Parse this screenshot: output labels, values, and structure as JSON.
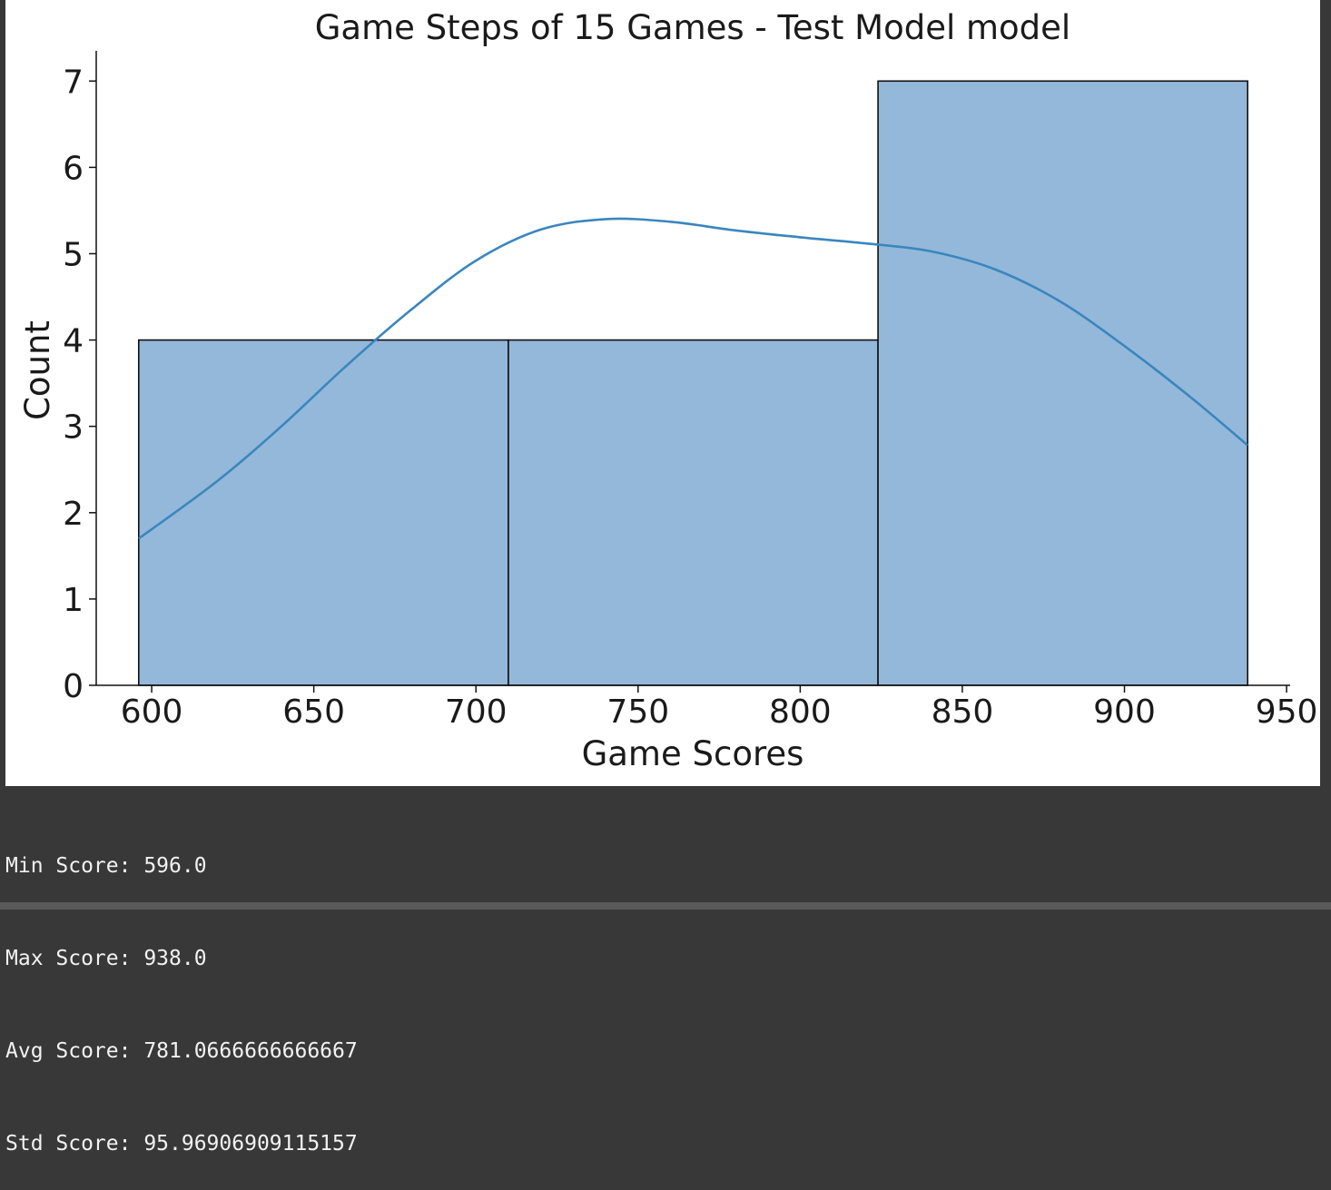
{
  "chart_data": {
    "type": "bar",
    "title": "Game Steps of 15 Games - Test Model model",
    "xlabel": "Game Scores",
    "ylabel": "Count",
    "bins": [
      {
        "start": 596.0,
        "end": 710.0,
        "count": 4
      },
      {
        "start": 710.0,
        "end": 824.0,
        "count": 4
      },
      {
        "start": 824.0,
        "end": 938.0,
        "count": 7
      }
    ],
    "xlim": [
      582.9,
      951.1
    ],
    "ylim": [
      0,
      7.35
    ],
    "xticks": [
      600,
      650,
      700,
      750,
      800,
      850,
      900,
      950
    ],
    "yticks": [
      0,
      1,
      2,
      3,
      4,
      5,
      6,
      7
    ],
    "kde": {
      "x": [
        596,
        620,
        640,
        660,
        680,
        700,
        720,
        740,
        760,
        780,
        800,
        820,
        840,
        860,
        880,
        900,
        920,
        938
      ],
      "y": [
        1.7,
        2.36,
        3.0,
        3.7,
        4.35,
        4.92,
        5.28,
        5.4,
        5.37,
        5.27,
        5.19,
        5.12,
        5.03,
        4.82,
        4.45,
        3.93,
        3.35,
        2.78
      ]
    },
    "colors": {
      "bar_fill": "#94b8d9",
      "bar_edge": "#111111",
      "kde_line": "#3a86bf"
    },
    "grid": false,
    "legend": "none"
  },
  "output": {
    "lines": [
      "Min Score: 596.0",
      "Max Score: 938.0",
      "Avg Score: 781.0666666666667",
      "Std Score: 95.96906909115157"
    ]
  }
}
